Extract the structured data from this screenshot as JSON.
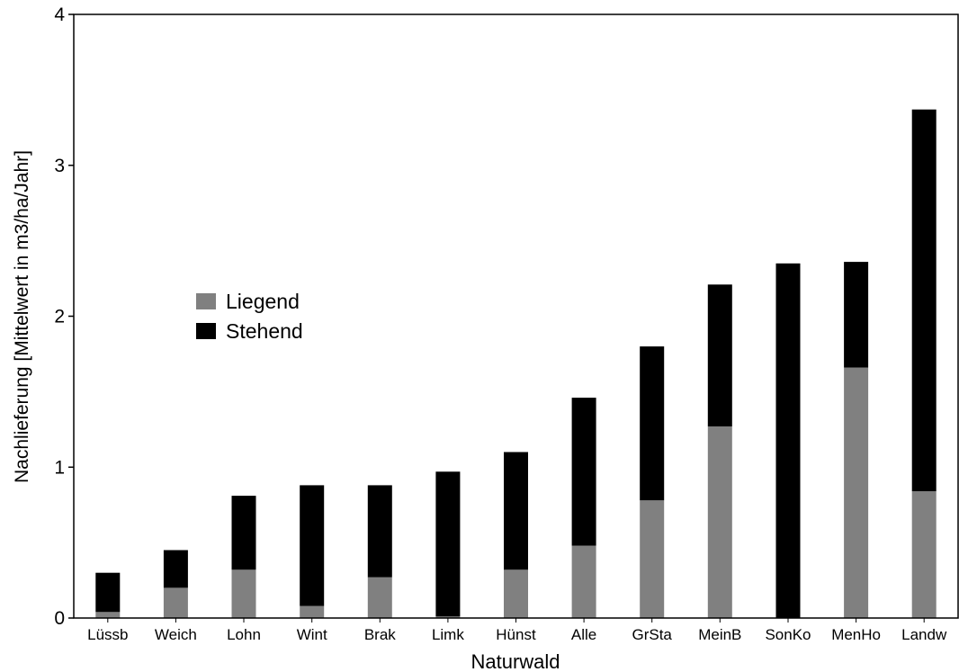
{
  "chart_data": {
    "type": "bar",
    "stacked": true,
    "xlabel": "Naturwald",
    "ylabel": "Nachlieferung [Mittelwert in m3/ha/Jahr]",
    "ylim": [
      0,
      4
    ],
    "yticks": [
      "0",
      "1",
      "2",
      "3",
      "4"
    ],
    "grid": false,
    "legend_position": "middle-left",
    "categories": [
      "Lüssb",
      "Weich",
      "Lohn",
      "Wint",
      "Brak",
      "Limk",
      "Hünst",
      "Alle",
      "GrSta",
      "MeinB",
      "SonKo",
      "MenHo",
      "Landw"
    ],
    "series": [
      {
        "name": "Liegend",
        "color": "#808080",
        "values": [
          0.04,
          0.2,
          0.32,
          0.08,
          0.27,
          0.01,
          0.32,
          0.48,
          0.78,
          1.27,
          0.0,
          1.66,
          0.84
        ]
      },
      {
        "name": "Stehend",
        "color": "#000000",
        "values": [
          0.26,
          0.25,
          0.49,
          0.8,
          0.61,
          0.96,
          0.78,
          0.98,
          1.02,
          0.94,
          2.35,
          0.7,
          2.53
        ]
      }
    ]
  }
}
